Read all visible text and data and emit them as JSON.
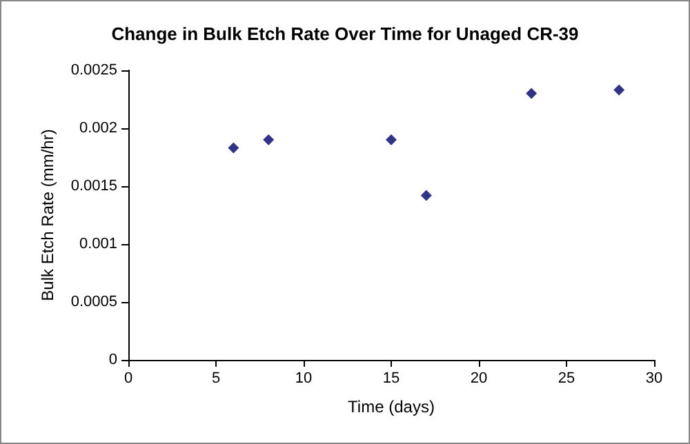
{
  "chart_data": {
    "type": "scatter",
    "title": "Change in Bulk Etch Rate Over Time for Unaged CR-39",
    "xlabel": "Time (days)",
    "ylabel": "Bulk Etch Rate (mm/hr)",
    "x": [
      6,
      8,
      15,
      17,
      23,
      28
    ],
    "values": [
      0.00183,
      0.0019,
      0.0019,
      0.00142,
      0.0023,
      0.00233
    ],
    "color": "#000066",
    "marker": "diamond",
    "xlim": [
      0,
      30
    ],
    "xticks": [
      0,
      5,
      10,
      15,
      20,
      25,
      30
    ],
    "ylim": [
      0,
      0.0025
    ],
    "yticks": [
      0,
      0.0005,
      0.001,
      0.0015,
      0.002,
      0.0025
    ],
    "grid": false
  }
}
